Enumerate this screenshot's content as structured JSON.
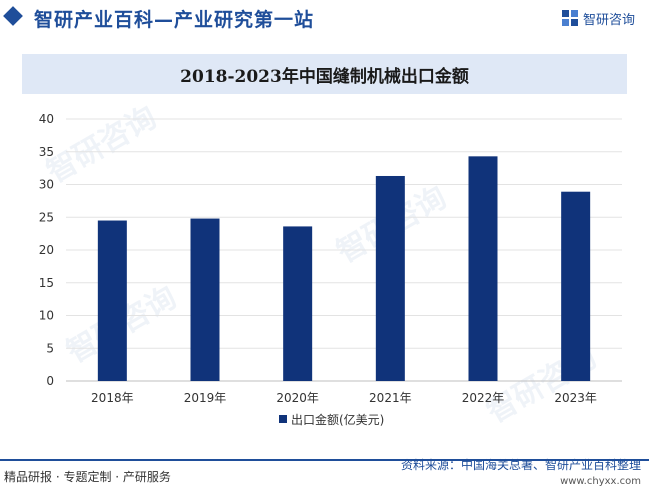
{
  "header": {
    "title": "智研产业百科—产业研究第一站",
    "brand_name": "智研咨询"
  },
  "watermark_text": "智研咨询",
  "chart_data": {
    "type": "bar",
    "title": "2018-2023年中国缝制机械出口金额",
    "categories": [
      "2018年",
      "2019年",
      "2020年",
      "2021年",
      "2022年",
      "2023年"
    ],
    "series": [
      {
        "name": "出口金额(亿美元)",
        "values": [
          24.5,
          24.8,
          23.6,
          31.3,
          34.3,
          28.9
        ],
        "color": "#10337a"
      }
    ],
    "xlabel": "",
    "ylabel": "",
    "ylim": [
      0,
      40
    ],
    "yticks": [
      0,
      5,
      10,
      15,
      20,
      25,
      30,
      35,
      40
    ],
    "grid": true,
    "legend_position": "bottom"
  },
  "footer": {
    "left": "精品研报 · 专题定制 · 产研服务",
    "source": "资料来源：中国海关总署、智研产业百科整理",
    "url": "www.chyxx.com"
  }
}
